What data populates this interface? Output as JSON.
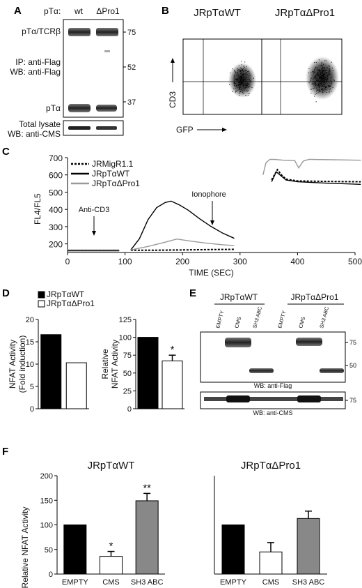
{
  "panels": {
    "A": {
      "letter": "A",
      "lane_header": "pTα:",
      "lanes": [
        "wt",
        "ΔPro1"
      ],
      "band_upper_label": "pTα/TCRβ",
      "band_lower_label": "pTα",
      "ip_label": "IP: anti-Flag",
      "wb_label": "WB: anti-Flag",
      "markers": [
        "75",
        "52",
        "37"
      ],
      "lysate_label_1": "Total lysate",
      "lysate_label_2": "WB: anti-CMS"
    },
    "B": {
      "letter": "B",
      "titles": [
        "JRpTαWT",
        "JRpTαΔPro1"
      ],
      "ylabel": "CD3",
      "xlabel": "GFP"
    },
    "C": {
      "letter": "C",
      "ylabel": "FL4/FL5",
      "xlabel": "TIME (SEC)",
      "annotations": [
        "Anti-CD3",
        "Ionophore"
      ]
    },
    "D": {
      "letter": "D",
      "legend": [
        {
          "name": "JRpTαWT",
          "color": "#000000"
        },
        {
          "name": "JRpTαΔPro1",
          "color": "#ffffff"
        }
      ]
    },
    "E": {
      "letter": "E",
      "groups": [
        "JRpTαWT",
        "JRpTαΔPro1"
      ],
      "lanes": [
        "EMPTY",
        "CMS",
        "SH3 ABC",
        "EMPTY",
        "CMS",
        "SH3 ABC"
      ],
      "markers_top": [
        "75",
        "50"
      ],
      "marker_bottom": "75",
      "wb_top": "WB: anti-Flag",
      "wb_bottom": "WB: anti-CMS"
    },
    "F": {
      "letter": "F",
      "ylabel": "Relative NFAT Activity"
    }
  },
  "chart_data": [
    {
      "id": "C",
      "type": "line",
      "xlabel": "TIME (SEC)",
      "ylabel": "FL4/FL5",
      "xlim": [
        0,
        500
      ],
      "ylim": [
        150,
        700
      ],
      "xticks": [
        0,
        100,
        200,
        300,
        400,
        500
      ],
      "yticks": [
        200,
        300,
        400,
        500,
        600,
        700
      ],
      "legend_position": "top-left",
      "series": [
        {
          "name": "JRMigR1.1",
          "style": "dashed",
          "color": "#000000",
          "segments": [
            [
              [
                0,
                163
              ],
              [
                90,
                163
              ]
            ],
            [
              [
                110,
                163
              ],
              [
                150,
                163
              ],
              [
                200,
                165
              ],
              [
                250,
                167
              ],
              [
                290,
                168
              ]
            ],
            [
              [
                355,
                572
              ],
              [
                365,
                630
              ],
              [
                372,
                600
              ],
              [
                380,
                575
              ],
              [
                400,
                565
              ],
              [
                450,
                562
              ],
              [
                510,
                560
              ]
            ]
          ]
        },
        {
          "name": "JRpTαWT",
          "style": "solid",
          "color": "#000000",
          "segments": [
            [
              [
                0,
                160
              ],
              [
                90,
                160
              ]
            ],
            [
              [
                110,
                165
              ],
              [
                125,
                230
              ],
              [
                140,
                340
              ],
              [
                155,
                410
              ],
              [
                170,
                440
              ],
              [
                180,
                448
              ],
              [
                195,
                425
              ],
              [
                210,
                395
              ],
              [
                230,
                345
              ],
              [
                250,
                300
              ],
              [
                270,
                262
              ],
              [
                290,
                232
              ]
            ],
            [
              [
                355,
                560
              ],
              [
                363,
                618
              ],
              [
                370,
                598
              ],
              [
                380,
                570
              ],
              [
                400,
                560
              ],
              [
                450,
                552
              ],
              [
                510,
                545
              ]
            ]
          ]
        },
        {
          "name": "JRpTαΔPro1",
          "style": "solid",
          "color": "#999999",
          "segments": [
            [
              [
                0,
                165
              ],
              [
                90,
                165
              ]
            ],
            [
              [
                110,
                165
              ],
              [
                140,
                185
              ],
              [
                170,
                210
              ],
              [
                190,
                228
              ],
              [
                210,
                218
              ],
              [
                240,
                205
              ],
              [
                270,
                195
              ],
              [
                290,
                190
              ]
            ],
            [
              [
                340,
                600
              ],
              [
                345,
                670
              ],
              [
                352,
                690
              ],
              [
                360,
                690
              ],
              [
                375,
                685
              ],
              [
                395,
                683
              ],
              [
                402,
                640
              ],
              [
                410,
                680
              ],
              [
                420,
                690
              ],
              [
                460,
                688
              ],
              [
                510,
                685
              ]
            ]
          ]
        }
      ]
    },
    {
      "id": "D-left",
      "type": "bar",
      "ylabel": "NFAT Activity (Fold induction)",
      "ylim": [
        0,
        20
      ],
      "yticks": [
        0,
        5,
        10,
        15,
        20
      ],
      "categories": [
        "JRpTαWT",
        "JRpTαΔPro1"
      ],
      "values": [
        16.6,
        10.3
      ]
    },
    {
      "id": "D-right",
      "type": "bar",
      "ylabel": "Relative NFAT Activity",
      "ylim": [
        0,
        125
      ],
      "yticks": [
        0,
        25,
        50,
        75,
        100,
        125
      ],
      "categories": [
        "JRpTαWT",
        "JRpTαΔPro1"
      ],
      "values": [
        100,
        67
      ],
      "errors": [
        0,
        8
      ],
      "significance": [
        "",
        "*"
      ]
    },
    {
      "id": "F-left",
      "type": "bar",
      "title": "JRpTαWT",
      "ylabel": "Relative NFAT Activity",
      "ylim": [
        0,
        200
      ],
      "yticks": [
        0,
        50,
        100,
        150,
        200
      ],
      "categories": [
        "EMPTY",
        "CMS",
        "SH3 ABC"
      ],
      "values": [
        100,
        36,
        149
      ],
      "errors": [
        0,
        10,
        15
      ],
      "significance": [
        "",
        "*",
        "**"
      ]
    },
    {
      "id": "F-right",
      "type": "bar",
      "title": "JRpTαΔPro1",
      "ylim": [
        0,
        200
      ],
      "categories": [
        "EMPTY",
        "CMS",
        "SH3 ABC"
      ],
      "values": [
        100,
        45,
        113
      ],
      "errors": [
        0,
        19,
        15
      ],
      "significance": [
        "",
        "",
        ""
      ]
    }
  ]
}
